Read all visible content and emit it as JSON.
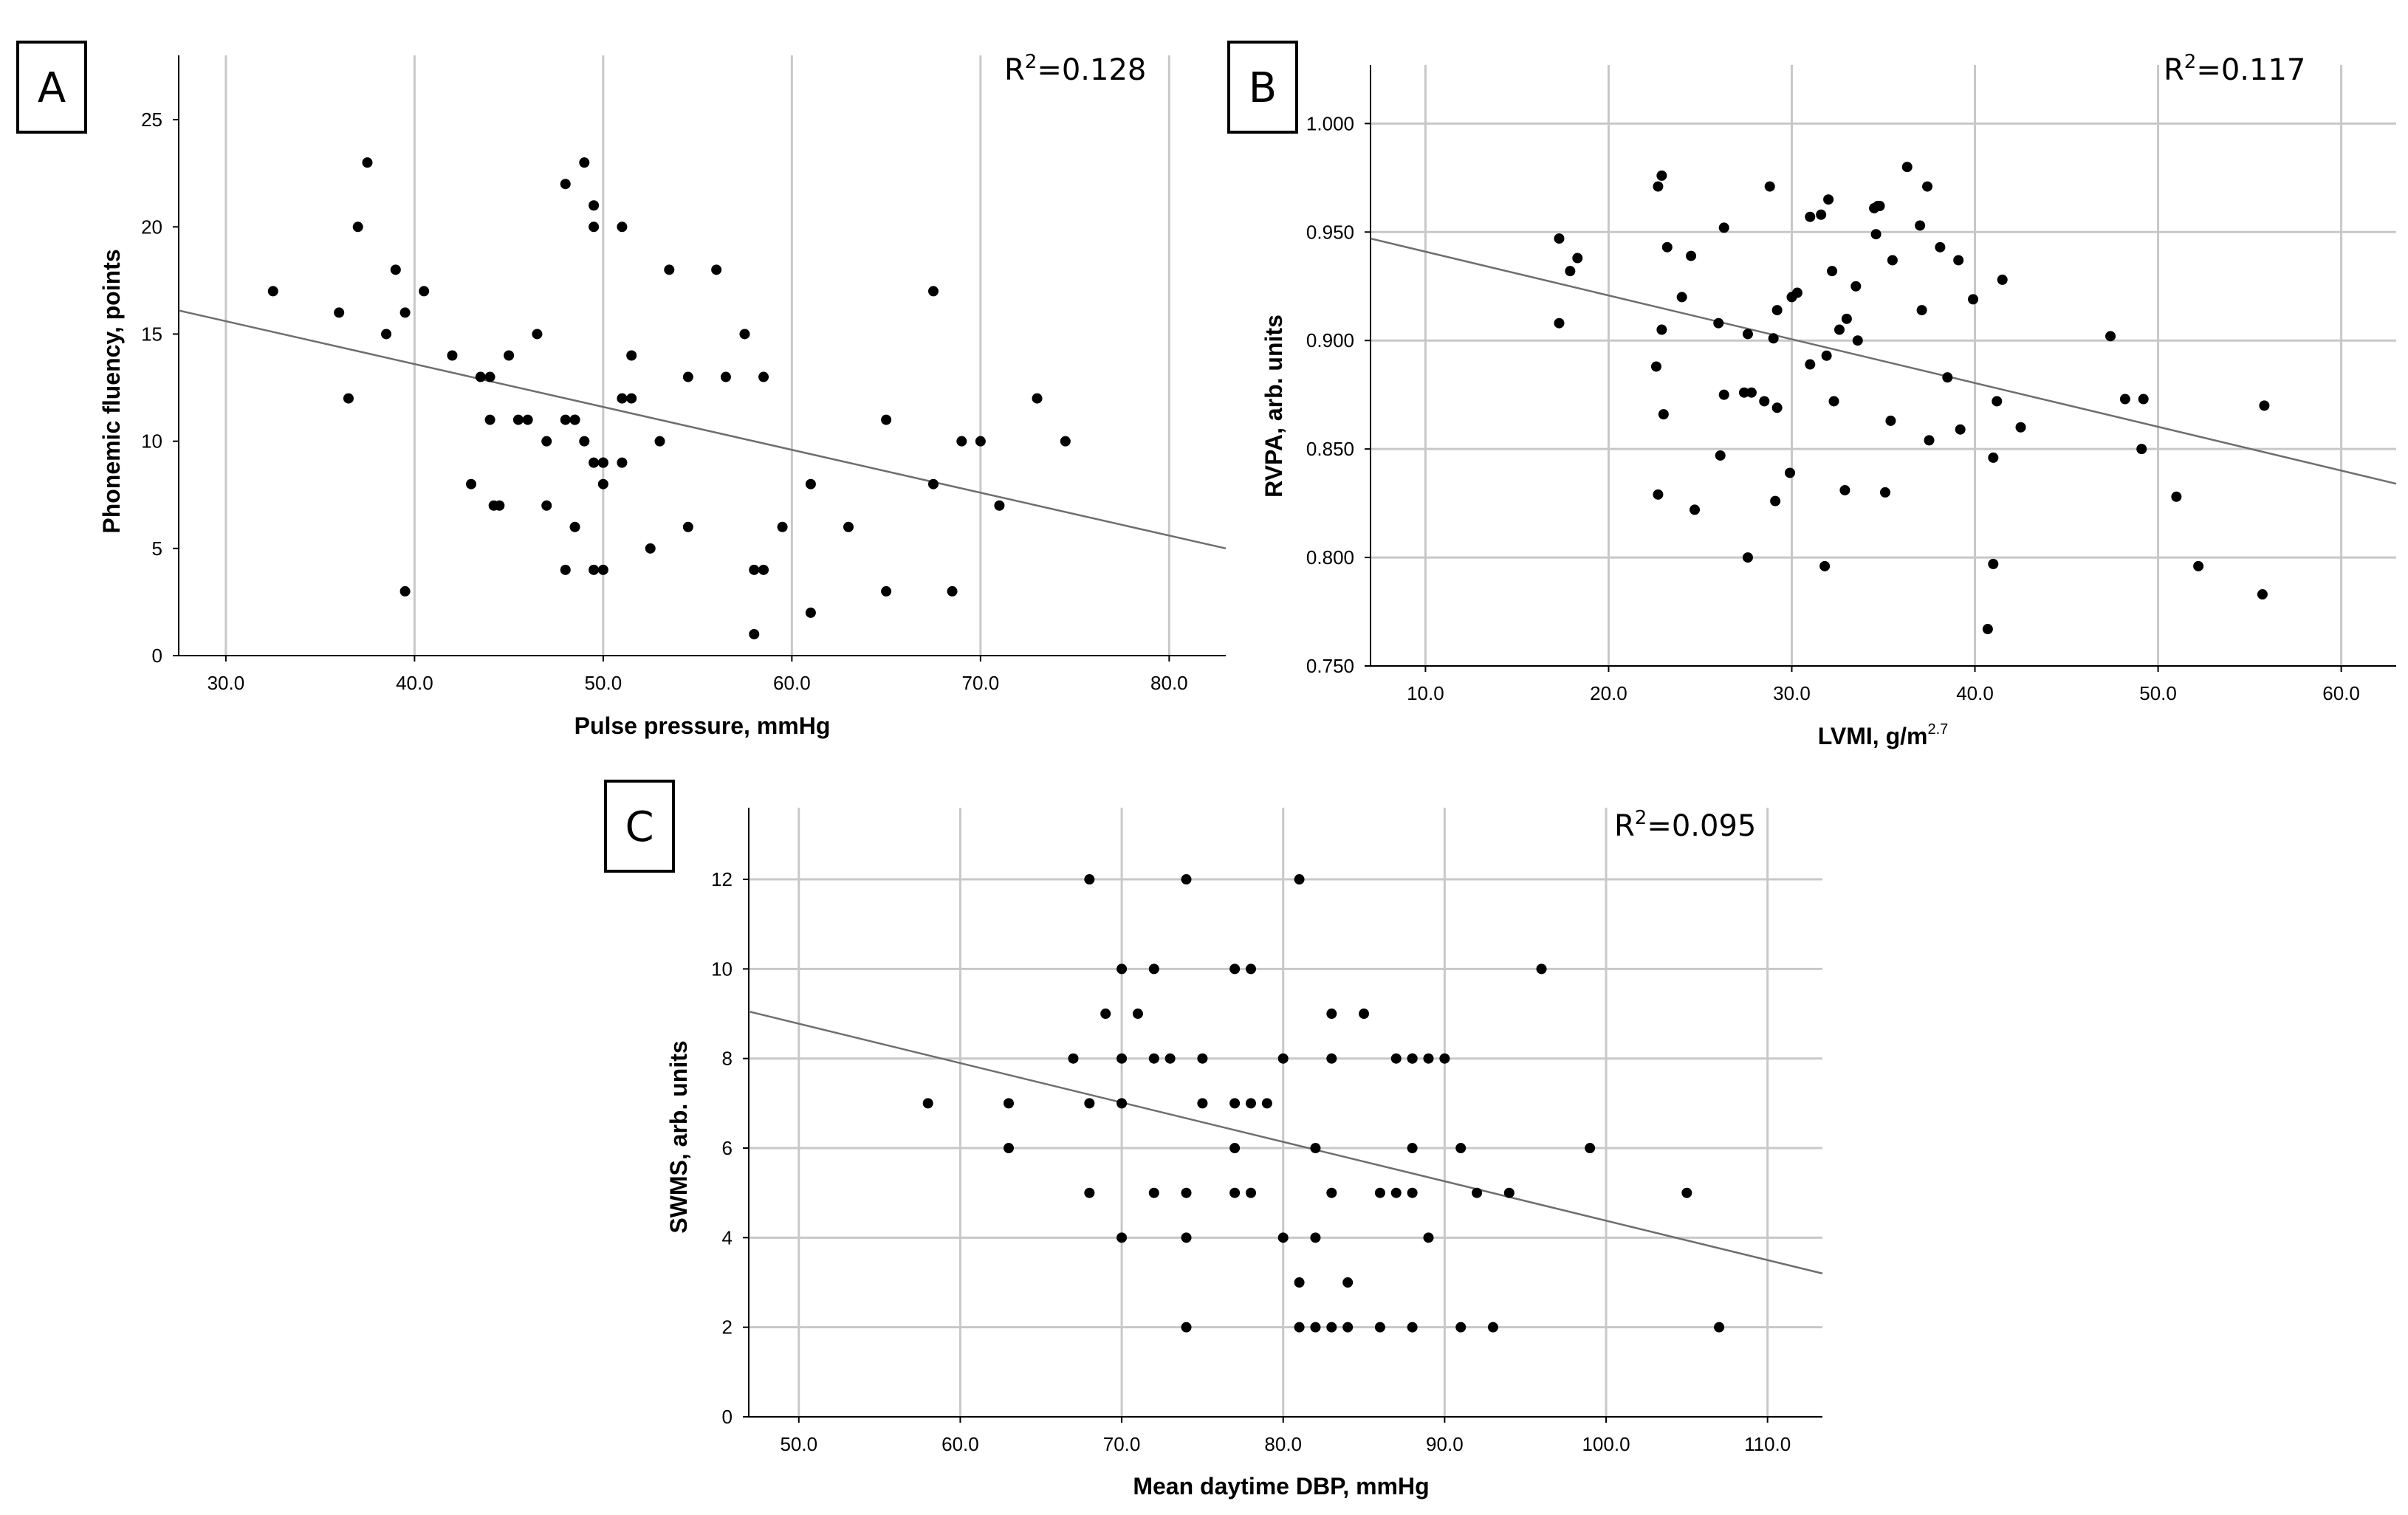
{
  "chart_data": [
    {
      "type": "scatter",
      "panel_label": "A",
      "r2_label": "0.128",
      "xlabel": "Pulse pressure, mmHg",
      "xlabel_unit_sup": "",
      "ylabel": "Phonemic fluency, points",
      "xlim": [
        27.5,
        83
      ],
      "ylim": [
        0,
        28
      ],
      "x_ticks": [
        30,
        40,
        50,
        60,
        70,
        80
      ],
      "x_tick_labels": [
        "30.0",
        "40.0",
        "50.0",
        "60.0",
        "70.0",
        "80.0"
      ],
      "y_ticks": [
        0,
        5,
        10,
        15,
        20,
        25
      ],
      "y_tick_labels": [
        "0",
        "5",
        "10",
        "15",
        "20",
        "25"
      ],
      "hgrid": false,
      "vgrid": true,
      "fit_line": [
        [
          27.5,
          16.1
        ],
        [
          83,
          5.0
        ]
      ],
      "x": [
        32.5,
        36,
        36.5,
        37,
        37.5,
        38.5,
        39,
        39.5,
        39.5,
        40.5,
        42,
        43,
        43.5,
        44,
        44,
        44.2,
        44.5,
        45,
        45.5,
        46,
        46.5,
        47,
        47,
        48,
        48,
        48,
        48.5,
        48.5,
        48.5,
        49,
        49,
        49.5,
        49.5,
        49.5,
        49.5,
        50,
        50,
        50,
        50,
        51,
        51,
        51,
        51.5,
        51.5,
        52.5,
        53,
        53.5,
        54.5,
        54.5,
        56,
        56.5,
        57.5,
        58,
        58,
        58.5,
        58.5,
        59.5,
        61,
        61,
        63,
        65,
        65,
        67.5,
        67.5,
        68.5,
        69,
        70,
        71,
        73,
        74.5
      ],
      "y": [
        17,
        16,
        12,
        20,
        23,
        15,
        18,
        3,
        16,
        17,
        14,
        8,
        13,
        11,
        13,
        7,
        7,
        14,
        11,
        11,
        15,
        10,
        7,
        22,
        11,
        4,
        11,
        6,
        11,
        23,
        10,
        21,
        20,
        9,
        4,
        9,
        8,
        9,
        4,
        20,
        9,
        12,
        14,
        12,
        5,
        10,
        18,
        13,
        6,
        18,
        13,
        15,
        1,
        4,
        13,
        4,
        6,
        8,
        2,
        6,
        11,
        3,
        17,
        8,
        3,
        10,
        10,
        7,
        12,
        10
      ]
    },
    {
      "type": "scatter",
      "panel_label": "B",
      "r2_label": "0.117",
      "xlabel": "LVMI, g/m",
      "xlabel_unit_sup": "2.7",
      "ylabel": "RVPA, arb. units",
      "xlim": [
        7,
        63
      ],
      "ylim": [
        0.75,
        1.027
      ],
      "x_ticks": [
        10,
        20,
        30,
        40,
        50,
        60
      ],
      "x_tick_labels": [
        "10.0",
        "20.0",
        "30.0",
        "40.0",
        "50.0",
        "60.0"
      ],
      "y_ticks": [
        0.75,
        0.8,
        0.85,
        0.9,
        0.95,
        1.0
      ],
      "y_tick_labels": [
        "0.750",
        "0.800",
        "0.850",
        "0.900",
        "0.950",
        "1.000"
      ],
      "hgrid": true,
      "vgrid": true,
      "fit_line": [
        [
          7,
          0.947
        ],
        [
          63,
          0.834
        ]
      ],
      "x": [
        17.3,
        17.3,
        17.9,
        18.3,
        22.6,
        22.7,
        22.7,
        22.9,
        22.9,
        23.0,
        23.2,
        24.0,
        24.5,
        24.7,
        26.0,
        26.1,
        26.3,
        26.3,
        27.4,
        27.6,
        27.6,
        27.8,
        28.5,
        28.8,
        29.0,
        29.1,
        29.2,
        29.2,
        29.9,
        30.0,
        30.3,
        31.0,
        31.0,
        31.6,
        31.8,
        31.9,
        32.0,
        32.2,
        32.3,
        32.6,
        32.9,
        33.0,
        33.5,
        33.6,
        34.5,
        34.6,
        34.7,
        34.8,
        35.1,
        35.4,
        35.5,
        36.3,
        37.0,
        37.1,
        37.4,
        37.5,
        38.1,
        38.5,
        39.1,
        39.2,
        39.9,
        40.7,
        41.0,
        41.0,
        41.2,
        41.5,
        42.5,
        47.4,
        48.2,
        49.1,
        49.2,
        51.0,
        52.2,
        55.7,
        55.8
      ],
      "y": [
        0.947,
        0.908,
        0.932,
        0.938,
        0.888,
        0.971,
        0.829,
        0.976,
        0.905,
        0.866,
        0.943,
        0.92,
        0.939,
        0.822,
        0.908,
        0.847,
        0.952,
        0.875,
        0.876,
        0.8,
        0.903,
        0.876,
        0.872,
        0.971,
        0.901,
        0.826,
        0.869,
        0.914,
        0.839,
        0.92,
        0.922,
        0.957,
        0.889,
        0.958,
        0.796,
        0.893,
        0.965,
        0.932,
        0.872,
        0.905,
        0.831,
        0.91,
        0.925,
        0.9,
        0.961,
        0.949,
        0.962,
        0.962,
        0.83,
        0.863,
        0.937,
        0.98,
        0.953,
        0.914,
        0.971,
        0.854,
        0.943,
        0.883,
        0.937,
        0.859,
        0.919,
        0.767,
        0.797,
        0.846,
        0.872,
        0.928,
        0.86,
        0.902,
        0.873,
        0.85,
        0.873,
        0.828,
        0.796,
        0.783,
        0.87
      ]
    },
    {
      "type": "scatter",
      "panel_label": "C",
      "r2_label": "0.095",
      "xlabel": "Mean daytime DBP,  mmHg",
      "xlabel_unit_sup": "",
      "ylabel": "SWMS, arb. units",
      "xlim": [
        46.9,
        113.4
      ],
      "ylim": [
        0,
        13.6
      ],
      "x_ticks": [
        50,
        60,
        70,
        80,
        90,
        100,
        110
      ],
      "x_tick_labels": [
        "50.0",
        "60.0",
        "70.0",
        "80.0",
        "90.0",
        "100.0",
        "110.0"
      ],
      "y_ticks": [
        0,
        2,
        4,
        6,
        8,
        10,
        12
      ],
      "y_tick_labels": [
        "0",
        "2",
        "4",
        "6",
        "8",
        "10",
        "12"
      ],
      "hgrid": true,
      "vgrid": true,
      "fit_line": [
        [
          46.9,
          9.05
        ],
        [
          113.4,
          3.2
        ]
      ],
      "x": [
        58,
        63,
        63,
        67,
        68,
        68,
        68,
        69,
        70,
        70,
        70,
        70,
        71,
        72,
        72,
        72,
        73,
        74,
        74,
        74,
        74,
        75,
        75,
        77,
        77,
        77,
        77,
        78,
        78,
        78,
        79,
        80,
        80,
        81,
        81,
        81,
        82,
        82,
        82,
        83,
        83,
        83,
        83,
        84,
        84,
        85,
        86,
        86,
        87,
        87,
        88,
        88,
        88,
        88,
        88,
        89,
        89,
        90,
        91,
        91,
        92,
        93,
        94,
        96,
        99,
        105,
        107
      ],
      "y": [
        7,
        7,
        6,
        8,
        12,
        7,
        5,
        9,
        10,
        8,
        7,
        4,
        9,
        10,
        8,
        5,
        8,
        12,
        5,
        4,
        2,
        8,
        7,
        10,
        7,
        6,
        5,
        10,
        7,
        5,
        7,
        8,
        4,
        12,
        3,
        2,
        6,
        4,
        2,
        9,
        8,
        5,
        2,
        3,
        2,
        9,
        5,
        2,
        8,
        5,
        8,
        6,
        5,
        2,
        8,
        8,
        4,
        8,
        6,
        2,
        5,
        2,
        5,
        10,
        6,
        5,
        2
      ]
    }
  ]
}
